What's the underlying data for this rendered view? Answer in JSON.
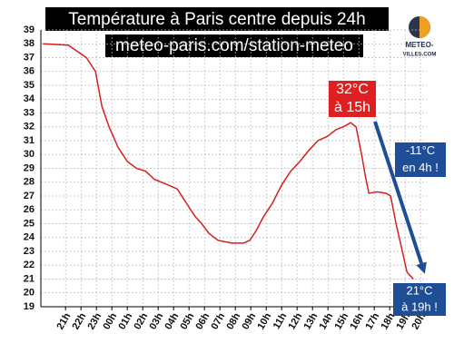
{
  "chart_data": {
    "type": "line",
    "title": "Température à Paris centre depuis 24h",
    "subtitle": "meteo-paris.com/station-meteo",
    "x": [
      19.53,
      21.18,
      22.35,
      22.94,
      23.35,
      23.82,
      24.41,
      25.0,
      25.59,
      26.18,
      26.76,
      27.65,
      28.24,
      28.82,
      29.41,
      29.82,
      30.29,
      30.88,
      31.76,
      32.53,
      32.94,
      33.35,
      33.82,
      34.41,
      35.0,
      35.59,
      36.18,
      36.76,
      37.35,
      37.94,
      38.53,
      39.0,
      39.47,
      39.82,
      40.18,
      40.41,
      40.65,
      41.18,
      41.76,
      42.06,
      42.41,
      42.82,
      43.12,
      43.53
    ],
    "series": [
      {
        "name": "Température",
        "color": "#d81e1e",
        "values": [
          38.0,
          37.9,
          37.0,
          36.0,
          33.5,
          32.0,
          30.5,
          29.5,
          29.0,
          28.8,
          28.2,
          27.8,
          27.5,
          26.5,
          25.5,
          25.0,
          24.3,
          23.8,
          23.6,
          23.6,
          23.8,
          24.5,
          25.5,
          26.5,
          27.8,
          28.8,
          29.5,
          30.3,
          31.0,
          31.3,
          31.8,
          32.0,
          32.3,
          32.0,
          30.0,
          28.5,
          27.2,
          27.3,
          27.2,
          27.0,
          25.0,
          23.0,
          21.5,
          21.0
        ]
      }
    ],
    "xlim": [
      19.4,
      44.4
    ],
    "ylim": [
      19,
      39
    ],
    "yticks": [
      19,
      20,
      21,
      22,
      23,
      24,
      25,
      26,
      27,
      28,
      29,
      30,
      31,
      32,
      33,
      34,
      35,
      36,
      37,
      38,
      39
    ],
    "xticks": [
      {
        "value": 21,
        "label": "21h"
      },
      {
        "value": 22,
        "label": "22h"
      },
      {
        "value": 23,
        "label": "23h"
      },
      {
        "value": 24,
        "label": "00h"
      },
      {
        "value": 25,
        "label": "01h"
      },
      {
        "value": 26,
        "label": "02h"
      },
      {
        "value": 27,
        "label": "03h"
      },
      {
        "value": 28,
        "label": "04h"
      },
      {
        "value": 29,
        "label": "05h"
      },
      {
        "value": 30,
        "label": "06h"
      },
      {
        "value": 31,
        "label": "07h"
      },
      {
        "value": 32,
        "label": "08h"
      },
      {
        "value": 33,
        "label": "09h"
      },
      {
        "value": 34,
        "label": "10h"
      },
      {
        "value": 35,
        "label": "11h"
      },
      {
        "value": 36,
        "label": "12h"
      },
      {
        "value": 37,
        "label": "13h"
      },
      {
        "value": 38,
        "label": "14h"
      },
      {
        "value": 39,
        "label": "15h"
      },
      {
        "value": 40,
        "label": "16h"
      },
      {
        "value": 41,
        "label": "17h"
      },
      {
        "value": 42,
        "label": "18h"
      },
      {
        "value": 43,
        "label": "19h"
      },
      {
        "value": 44,
        "label": "20h"
      }
    ],
    "grid": true,
    "annotations": [
      {
        "lines": [
          "32°C",
          "à 15h"
        ],
        "color": "#e02020"
      },
      {
        "lines": [
          "-11°C",
          "en 4h !"
        ],
        "color": "#1f4e96"
      },
      {
        "lines": [
          "21°C",
          "à 19h !"
        ],
        "color": "#1f4e96"
      }
    ]
  },
  "logo": [
    "METEO-",
    "VILLES.COM"
  ]
}
